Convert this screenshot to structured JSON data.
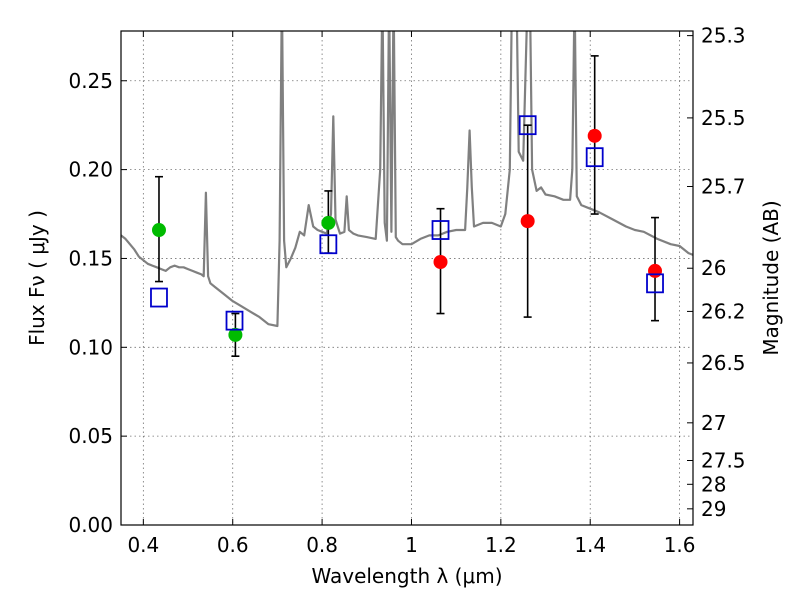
{
  "chart_data": {
    "type": "scatter",
    "xlabel": "Wavelength  λ (μm)",
    "ylabel": "Flux  Fν  ( μJy )",
    "y2label": "Magnitude (AB)",
    "xlim": [
      0.35,
      1.63
    ],
    "ylim": [
      0.0,
      0.278
    ],
    "x_ticks": [
      0.4,
      0.6,
      0.8,
      1.0,
      1.2,
      1.4,
      1.6
    ],
    "x_tick_labels": [
      "0.4",
      "0.6",
      "0.8",
      "1",
      "1.2",
      "1.4",
      "1.6"
    ],
    "y_ticks": [
      0.0,
      0.05,
      0.1,
      0.15,
      0.2,
      0.25
    ],
    "y_tick_labels": [
      "0.00",
      "0.05",
      "0.10",
      "0.15",
      "0.20",
      "0.25"
    ],
    "y2_ticks": [
      {
        "label": "25.3",
        "flux": 0.2754
      },
      {
        "label": "25.5",
        "flux": 0.2291
      },
      {
        "label": "25.7",
        "flux": 0.1905
      },
      {
        "label": "26",
        "flux": 0.1445
      },
      {
        "label": "26.2",
        "flux": 0.1202
      },
      {
        "label": "26.5",
        "flux": 0.0912
      },
      {
        "label": "27",
        "flux": 0.0575
      },
      {
        "label": "27.5",
        "flux": 0.0363
      },
      {
        "label": "28",
        "flux": 0.0229
      },
      {
        "label": "29",
        "flux": 0.0091
      }
    ],
    "grid": true,
    "colors": {
      "model": "#808080",
      "green": "#00bb00",
      "red": "#ff0000",
      "square": "#0000cc",
      "errorbar": "#000000"
    },
    "model_spectrum": {
      "x": [
        0.35,
        0.36,
        0.37,
        0.38,
        0.39,
        0.4,
        0.41,
        0.42,
        0.43,
        0.44,
        0.45,
        0.46,
        0.47,
        0.48,
        0.49,
        0.5,
        0.51,
        0.52,
        0.53,
        0.535,
        0.54,
        0.545,
        0.55,
        0.56,
        0.58,
        0.6,
        0.62,
        0.64,
        0.66,
        0.68,
        0.7,
        0.705,
        0.71,
        0.715,
        0.72,
        0.73,
        0.74,
        0.75,
        0.76,
        0.77,
        0.78,
        0.79,
        0.8,
        0.81,
        0.82,
        0.825,
        0.83,
        0.835,
        0.84,
        0.85,
        0.855,
        0.86,
        0.865,
        0.87,
        0.88,
        0.9,
        0.92,
        0.93,
        0.935,
        0.94,
        0.945,
        0.95,
        0.955,
        0.96,
        0.965,
        0.97,
        0.98,
        1.0,
        1.02,
        1.04,
        1.06,
        1.08,
        1.1,
        1.12,
        1.125,
        1.13,
        1.135,
        1.14,
        1.16,
        1.18,
        1.2,
        1.21,
        1.22,
        1.225,
        1.23,
        1.235,
        1.24,
        1.25,
        1.26,
        1.265,
        1.27,
        1.28,
        1.29,
        1.3,
        1.32,
        1.34,
        1.355,
        1.36,
        1.365,
        1.37,
        1.38,
        1.4,
        1.42,
        1.45,
        1.48,
        1.5,
        1.52,
        1.55,
        1.58,
        1.6,
        1.62,
        1.63
      ],
      "y": [
        0.163,
        0.161,
        0.158,
        0.155,
        0.151,
        0.149,
        0.147,
        0.146,
        0.145,
        0.144,
        0.143,
        0.145,
        0.146,
        0.145,
        0.145,
        0.144,
        0.143,
        0.142,
        0.141,
        0.14,
        0.187,
        0.14,
        0.136,
        0.134,
        0.13,
        0.126,
        0.123,
        0.12,
        0.117,
        0.113,
        0.112,
        0.16,
        0.3,
        0.16,
        0.145,
        0.15,
        0.156,
        0.165,
        0.163,
        0.18,
        0.168,
        0.166,
        0.165,
        0.164,
        0.175,
        0.23,
        0.172,
        0.168,
        0.164,
        0.165,
        0.185,
        0.166,
        0.165,
        0.164,
        0.163,
        0.162,
        0.161,
        0.2,
        0.3,
        0.17,
        0.16,
        0.3,
        0.165,
        0.3,
        0.162,
        0.16,
        0.158,
        0.158,
        0.161,
        0.163,
        0.163,
        0.165,
        0.166,
        0.166,
        0.19,
        0.222,
        0.19,
        0.168,
        0.17,
        0.17,
        0.168,
        0.175,
        0.2,
        0.3,
        0.3,
        0.3,
        0.21,
        0.205,
        0.3,
        0.3,
        0.2,
        0.188,
        0.19,
        0.186,
        0.185,
        0.183,
        0.183,
        0.2,
        0.3,
        0.185,
        0.18,
        0.178,
        0.176,
        0.172,
        0.168,
        0.166,
        0.165,
        0.161,
        0.158,
        0.157,
        0.153,
        0.152
      ]
    },
    "series": [
      {
        "marker": "circle",
        "color": "green",
        "points": [
          {
            "x": 0.435,
            "y": 0.166,
            "yerr_low": 0.137,
            "yerr_high": 0.196
          },
          {
            "x": 0.606,
            "y": 0.107,
            "yerr_low": 0.095,
            "yerr_high": 0.119
          },
          {
            "x": 0.814,
            "y": 0.17,
            "yerr_low": 0.153,
            "yerr_high": 0.188
          }
        ]
      },
      {
        "marker": "circle",
        "color": "red",
        "points": [
          {
            "x": 1.065,
            "y": 0.148,
            "yerr_low": 0.119,
            "yerr_high": 0.178
          },
          {
            "x": 1.26,
            "y": 0.171,
            "yerr_low": 0.117,
            "yerr_high": 0.225
          },
          {
            "x": 1.41,
            "y": 0.219,
            "yerr_low": 0.175,
            "yerr_high": 0.264
          },
          {
            "x": 1.545,
            "y": 0.143,
            "yerr_low": 0.115,
            "yerr_high": 0.173
          }
        ]
      },
      {
        "marker": "square",
        "color": "square",
        "points": [
          {
            "x": 0.435,
            "y": 0.128
          },
          {
            "x": 0.604,
            "y": 0.115
          },
          {
            "x": 0.814,
            "y": 0.158
          },
          {
            "x": 1.065,
            "y": 0.166
          },
          {
            "x": 1.26,
            "y": 0.225
          },
          {
            "x": 1.41,
            "y": 0.207
          },
          {
            "x": 1.545,
            "y": 0.136
          }
        ]
      }
    ]
  }
}
